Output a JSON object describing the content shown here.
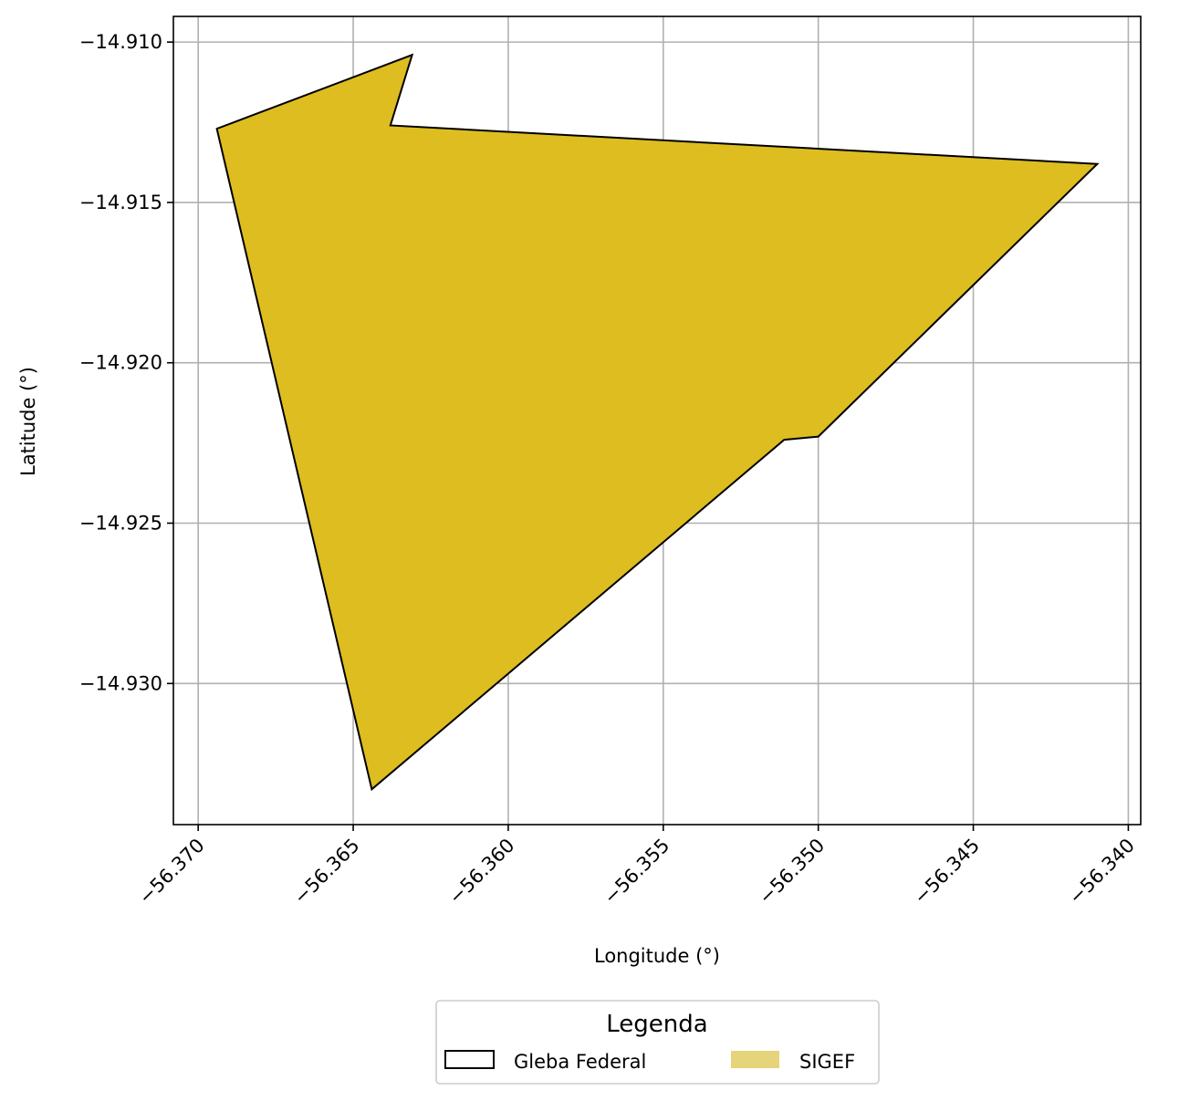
{
  "chart_data": {
    "type": "map",
    "xlabel": "Longitude (°)",
    "ylabel": "Latitude (°)",
    "xlim": [
      -56.3708,
      -56.3396
    ],
    "ylim": [
      -14.9344,
      -14.9092
    ],
    "grid": true,
    "xticks": [
      -56.37,
      -56.365,
      -56.36,
      -56.355,
      -56.35,
      -56.345,
      -56.34
    ],
    "yticks": [
      -14.91,
      -14.915,
      -14.92,
      -14.925,
      -14.93
    ],
    "xtick_labels": [
      "−56.370",
      "−56.365",
      "−56.360",
      "−56.355",
      "−56.350",
      "−56.345",
      "−56.340"
    ],
    "ytick_labels": [
      "−14.910",
      "−14.915",
      "−14.920",
      "−14.925",
      "−14.930"
    ],
    "layers": [
      {
        "name": "SIGEF",
        "fill": "#DDBD20",
        "legend_fill": "#E6D47A",
        "stroke": "#000000",
        "polygon": [
          [
            -56.3631,
            -14.9104
          ],
          [
            -56.3638,
            -14.9126
          ],
          [
            -56.341,
            -14.9138
          ],
          [
            -56.35,
            -14.9223
          ],
          [
            -56.3511,
            -14.9224
          ],
          [
            -56.3644,
            -14.9333
          ],
          [
            -56.3694,
            -14.9127
          ]
        ]
      },
      {
        "name": "Gleba Federal",
        "fill": "none",
        "stroke": "#000000"
      }
    ],
    "legend": {
      "title": "Legenda",
      "position": "bottom-center",
      "entries": [
        "Gleba Federal",
        "SIGEF"
      ]
    }
  }
}
